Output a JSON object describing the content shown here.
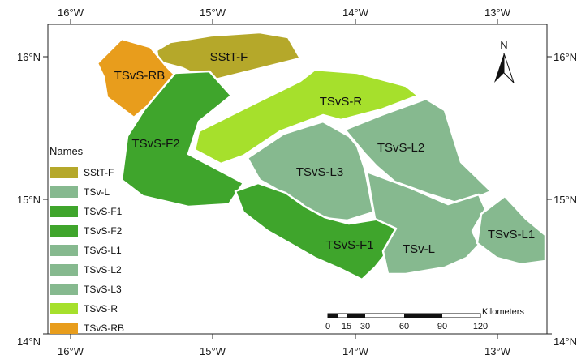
{
  "map": {
    "top_ticks": [
      "16°W",
      "15°W",
      "14°W",
      "13°W"
    ],
    "bottom_ticks": [
      "16°W",
      "15°W",
      "14°W",
      "13°W"
    ],
    "left_ticks": [
      "16°N",
      "15°N",
      "14°N"
    ],
    "right_ticks": [
      "16°N",
      "15°N",
      "14°N"
    ],
    "north_label": "N",
    "zones": [
      {
        "label": "SStT-F",
        "color": "#b5a82a"
      },
      {
        "label": "TSvS-RB",
        "color": "#e89d1c"
      },
      {
        "label": "TSvS-F2",
        "color": "#3fa52c"
      },
      {
        "label": "TSvS-R",
        "color": "#a6e02c"
      },
      {
        "label": "TSvS-L2",
        "color": "#86b98f"
      },
      {
        "label": "TSvS-L3",
        "color": "#86b98f"
      },
      {
        "label": "TSvS-F1",
        "color": "#3fa52c"
      },
      {
        "label": "TSv-L",
        "color": "#86b98f"
      },
      {
        "label": "TSvS-L1",
        "color": "#86b98f"
      }
    ],
    "legend": {
      "title": "Names",
      "items": [
        {
          "label": "SStT-F",
          "color": "#b5a82a"
        },
        {
          "label": "TSv-L",
          "color": "#86b98f"
        },
        {
          "label": "TSvS-F1",
          "color": "#3fa52c"
        },
        {
          "label": "TSvS-F2",
          "color": "#3fa52c"
        },
        {
          "label": "TSvS-L1",
          "color": "#86b98f"
        },
        {
          "label": "TSvS-L2",
          "color": "#86b98f"
        },
        {
          "label": "TSvS-L3",
          "color": "#86b98f"
        },
        {
          "label": "TSvS-R",
          "color": "#a6e02c"
        },
        {
          "label": "TSvS-RB",
          "color": "#e89d1c"
        }
      ]
    },
    "scale_bar": {
      "unit": "Kilometers",
      "ticks": [
        "0",
        "15",
        "30",
        "60",
        "90",
        "120"
      ]
    }
  }
}
